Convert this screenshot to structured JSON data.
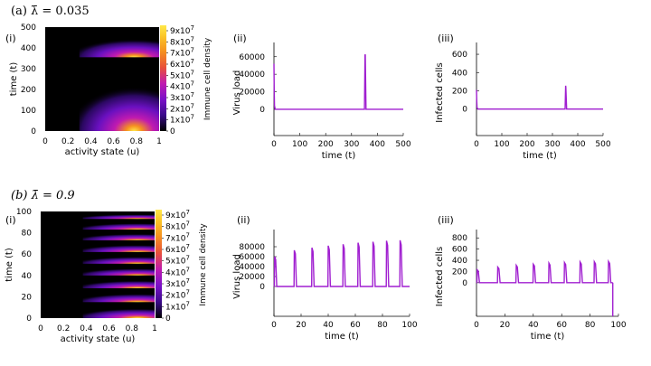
{
  "panels": {
    "a": {
      "label": "(a) λ̄ = 0.035",
      "lambda": 0.035
    },
    "b": {
      "label": "(b) λ̄ = 0.9",
      "lambda": 0.9
    }
  },
  "colors": {
    "line": "#a01fd0",
    "colormap": [
      "#000000",
      "#3a0a8a",
      "#7a10c8",
      "#c01ab0",
      "#e8503a",
      "#f59020",
      "#fbc628",
      "#ffe84a"
    ]
  },
  "chart_data": [
    {
      "id": "a-i",
      "type": "heatmap",
      "panel_label": "(i)",
      "xlabel": "activity state (u)",
      "ylabel": "time (t)",
      "xlim": [
        0,
        1
      ],
      "ylim": [
        0,
        500
      ],
      "x_ticks": [
        "0",
        "0.2",
        "0.4",
        "0.6",
        "0.8",
        "1"
      ],
      "y_ticks": [
        "0",
        "100",
        "200",
        "300",
        "400",
        "500"
      ],
      "colorbar": {
        "label": "Immune cell density",
        "range": [
          0,
          90000000
        ],
        "ticks": [
          "0",
          "1x10^7",
          "2x10^7",
          "3x10^7",
          "4x10^7",
          "5x10^7",
          "6x10^7",
          "7x10^7",
          "8x10^7",
          "9x10^7"
        ]
      },
      "density_peak_u": 0.78,
      "bursts": [
        {
          "t_start": 0,
          "t_end": 355
        },
        {
          "t_start": 355,
          "t_end": 500
        }
      ]
    },
    {
      "id": "a-ii",
      "type": "line",
      "panel_label": "(ii)",
      "xlabel": "time (t)",
      "ylabel": "Virus load",
      "xlim": [
        0,
        500
      ],
      "ylim": [
        -30000,
        68000
      ],
      "x_ticks": [
        "0",
        "100",
        "200",
        "300",
        "400",
        "500"
      ],
      "y_ticks": [
        "0",
        "20000",
        "40000",
        "60000"
      ],
      "x": [
        0,
        1,
        2,
        5,
        350,
        352,
        353,
        356,
        500
      ],
      "y": [
        52000,
        20000,
        4000,
        0,
        0,
        62000,
        62000,
        0,
        0
      ]
    },
    {
      "id": "a-iii",
      "type": "line",
      "panel_label": "(iii)",
      "xlabel": "time (t)",
      "ylabel": "Infected cells",
      "xlim": [
        0,
        500
      ],
      "ylim": [
        -290,
        650
      ],
      "x_ticks": [
        "0",
        "100",
        "200",
        "300",
        "400",
        "500"
      ],
      "y_ticks": [
        "0",
        "200",
        "400",
        "600"
      ],
      "x": [
        0,
        1,
        2,
        5,
        350,
        352,
        353,
        356,
        500
      ],
      "y": [
        210,
        90,
        20,
        0,
        0,
        255,
        240,
        0,
        0
      ]
    },
    {
      "id": "b-i",
      "type": "heatmap",
      "panel_label": "(i)",
      "xlabel": "activity state (u)",
      "ylabel": "time (t)",
      "xlim": [
        0,
        1
      ],
      "ylim": [
        0,
        100
      ],
      "x_ticks": [
        "0",
        "0.2",
        "0.4",
        "0.6",
        "0.8",
        "1"
      ],
      "y_ticks": [
        "0",
        "20",
        "40",
        "60",
        "80",
        "100"
      ],
      "colorbar": {
        "label": "Immune cell density",
        "range": [
          0,
          90000000
        ],
        "ticks": [
          "0",
          "1x10^7",
          "2x10^7",
          "3x10^7",
          "4x10^7",
          "5x10^7",
          "6x10^7",
          "7x10^7",
          "8x10^7",
          "9x10^7"
        ]
      },
      "density_peak_u": 0.85,
      "bursts": [
        {
          "t_start": 0,
          "t_end": 15
        },
        {
          "t_start": 15,
          "t_end": 28
        },
        {
          "t_start": 28,
          "t_end": 40
        },
        {
          "t_start": 40,
          "t_end": 51
        },
        {
          "t_start": 51,
          "t_end": 62
        },
        {
          "t_start": 62,
          "t_end": 73
        },
        {
          "t_start": 73,
          "t_end": 83
        },
        {
          "t_start": 83,
          "t_end": 93
        },
        {
          "t_start": 93,
          "t_end": 100
        }
      ]
    },
    {
      "id": "b-ii",
      "type": "line",
      "panel_label": "(ii)",
      "xlabel": "time (t)",
      "ylabel": "Virus load",
      "xlim": [
        0,
        100
      ],
      "ylim": [
        -60000,
        100000
      ],
      "x_ticks": [
        "0",
        "20",
        "40",
        "60",
        "80",
        "100"
      ],
      "y_ticks": [
        "0",
        "20000",
        "40000",
        "60000",
        "80000"
      ],
      "peaks": [
        {
          "t": 0.5,
          "v": 60000
        },
        {
          "t": 15,
          "v": 73000
        },
        {
          "t": 28,
          "v": 78000
        },
        {
          "t": 40,
          "v": 82000
        },
        {
          "t": 51,
          "v": 85000
        },
        {
          "t": 62,
          "v": 88000
        },
        {
          "t": 73,
          "v": 90000
        },
        {
          "t": 83,
          "v": 92000
        },
        {
          "t": 93,
          "v": 93000
        }
      ],
      "t_end": 100
    },
    {
      "id": "b-iii",
      "type": "line",
      "panel_label": "(iii)",
      "xlabel": "time (t)",
      "ylabel": "Infected cells",
      "xlim": [
        0,
        100
      ],
      "ylim": [
        -600,
        820
      ],
      "x_ticks": [
        "0",
        "20",
        "40",
        "60",
        "80",
        "100"
      ],
      "y_ticks": [
        "0",
        "200",
        "400",
        "600",
        "800"
      ],
      "peaks": [
        {
          "t": 0.5,
          "v": 230
        },
        {
          "t": 15,
          "v": 280
        },
        {
          "t": 28,
          "v": 310
        },
        {
          "t": 40,
          "v": 330
        },
        {
          "t": 51,
          "v": 350
        },
        {
          "t": 62,
          "v": 360
        },
        {
          "t": 73,
          "v": 370
        },
        {
          "t": 83,
          "v": 375
        },
        {
          "t": 93,
          "v": 380
        }
      ],
      "t_end": 96
    }
  ]
}
